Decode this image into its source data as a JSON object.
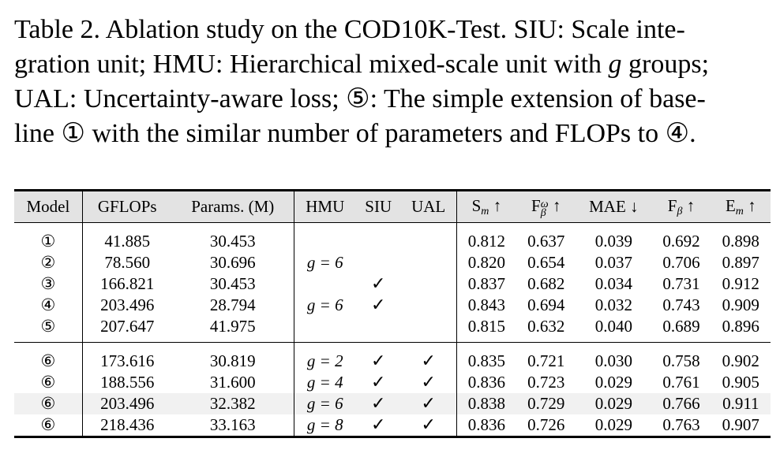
{
  "caption": {
    "line1": "Table 2.  Ablation study on the COD10K-Test.  SIU: Scale inte-",
    "line2_a": "gration unit; HMU: Hierarchical mixed-scale unit with ",
    "line2_g": "g",
    "line2_b": " groups;",
    "line3": "UAL: Uncertainty-aware loss; ⑤:  The simple extension of base-",
    "line4": "line ① with the similar number of parameters and FLOPs to ④."
  },
  "table": {
    "headers": {
      "model": "Model",
      "gflops": "GFLOPs",
      "params": "Params. (M)",
      "hmu": "HMU",
      "siu": "SIU",
      "ual": "UAL",
      "sm_base": "S",
      "sm_sub": "m",
      "sm_arrow": "↑",
      "fw_base": "F",
      "fw_sup": "ω",
      "fw_sub": "β",
      "fw_arrow": "↑",
      "mae": "MAE ↓",
      "fb_base": "F",
      "fb_sub": "β",
      "fb_arrow": "↑",
      "em_base": "E",
      "em_sub": "m",
      "em_arrow": "↑"
    },
    "rows": [
      {
        "model": "①",
        "gflops": "41.885",
        "params": "30.453",
        "hmu": "",
        "siu": "",
        "ual": "",
        "sm": "0.812",
        "fw": "0.637",
        "mae": "0.039",
        "fb": "0.692",
        "em": "0.898"
      },
      {
        "model": "②",
        "gflops": "78.560",
        "params": "30.696",
        "hmu": "g = 6",
        "siu": "",
        "ual": "",
        "sm": "0.820",
        "fw": "0.654",
        "mae": "0.037",
        "fb": "0.706",
        "em": "0.897"
      },
      {
        "model": "③",
        "gflops": "166.821",
        "params": "30.453",
        "hmu": "",
        "siu": "✓",
        "ual": "",
        "sm": "0.837",
        "fw": "0.682",
        "mae": "0.034",
        "fb": "0.731",
        "em": "0.912"
      },
      {
        "model": "④",
        "gflops": "203.496",
        "params": "28.794",
        "hmu": "g = 6",
        "siu": "✓",
        "ual": "",
        "sm": "0.843",
        "fw": "0.694",
        "mae": "0.032",
        "fb": "0.743",
        "em": "0.909"
      },
      {
        "model": "⑤",
        "gflops": "207.647",
        "params": "41.975",
        "hmu": "",
        "siu": "",
        "ual": "",
        "sm": "0.815",
        "fw": "0.632",
        "mae": "0.040",
        "fb": "0.689",
        "em": "0.896"
      },
      {
        "model": "⑥",
        "gflops": "173.616",
        "params": "30.819",
        "hmu": "g = 2",
        "siu": "✓",
        "ual": "✓",
        "sm": "0.835",
        "fw": "0.721",
        "mae": "0.030",
        "fb": "0.758",
        "em": "0.902"
      },
      {
        "model": "⑥",
        "gflops": "188.556",
        "params": "31.600",
        "hmu": "g = 4",
        "siu": "✓",
        "ual": "✓",
        "sm": "0.836",
        "fw": "0.723",
        "mae": "0.029",
        "fb": "0.761",
        "em": "0.905"
      },
      {
        "model": "⑥",
        "gflops": "203.496",
        "params": "32.382",
        "hmu": "g = 6",
        "siu": "✓",
        "ual": "✓",
        "sm": "0.838",
        "fw": "0.729",
        "mae": "0.029",
        "fb": "0.766",
        "em": "0.911"
      },
      {
        "model": "⑥",
        "gflops": "218.436",
        "params": "33.163",
        "hmu": "g = 8",
        "siu": "✓",
        "ual": "✓",
        "sm": "0.836",
        "fw": "0.726",
        "mae": "0.029",
        "fb": "0.763",
        "em": "0.907"
      }
    ],
    "shaded_row_index": 7,
    "group_break_index": 5
  }
}
